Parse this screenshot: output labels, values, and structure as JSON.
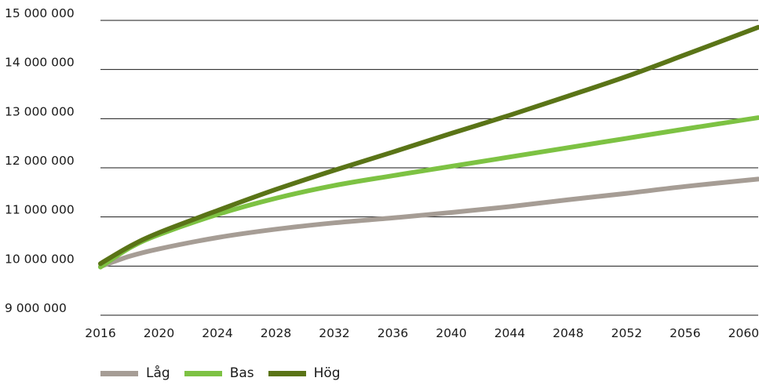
{
  "chart_data": {
    "type": "line",
    "title": "",
    "xlabel": "",
    "ylabel": "",
    "xlim": [
      2016,
      2061
    ],
    "ylim": [
      9000000,
      15000000
    ],
    "x_ticks": [
      2016,
      2020,
      2024,
      2028,
      2032,
      2036,
      2040,
      2044,
      2048,
      2052,
      2056,
      2060
    ],
    "x_tick_labels": [
      "2016",
      "2020",
      "2024",
      "2028",
      "2032",
      "2036",
      "2040",
      "2044",
      "2048",
      "2052",
      "2056",
      "2060"
    ],
    "y_ticks": [
      9000000,
      10000000,
      11000000,
      12000000,
      13000000,
      14000000,
      15000000
    ],
    "y_tick_labels": [
      "9 000 000",
      "10 000 000",
      "11 000 000",
      "12 000 000",
      "13 000 000",
      "14 000 000",
      "15 000 000"
    ],
    "grid": "horizontal",
    "legend_position": "bottom-left",
    "x": [
      2016,
      2018,
      2020,
      2024,
      2028,
      2032,
      2036,
      2040,
      2044,
      2048,
      2052,
      2056,
      2061
    ],
    "series": [
      {
        "name": "Låg",
        "color": "#a69d95",
        "values": [
          9990000,
          10200000,
          10350000,
          10580000,
          10750000,
          10880000,
          10980000,
          11090000,
          11210000,
          11350000,
          11480000,
          11620000,
          11770000
        ]
      },
      {
        "name": "Bas",
        "color": "#7dc243",
        "values": [
          9980000,
          10370000,
          10640000,
          11050000,
          11380000,
          11640000,
          11840000,
          12030000,
          12220000,
          12410000,
          12600000,
          12790000,
          13020000
        ]
      },
      {
        "name": "Hög",
        "color": "#5a7417",
        "values": [
          10050000,
          10400000,
          10680000,
          11130000,
          11560000,
          11950000,
          12320000,
          12700000,
          13070000,
          13460000,
          13860000,
          14300000,
          14860000
        ]
      }
    ]
  }
}
